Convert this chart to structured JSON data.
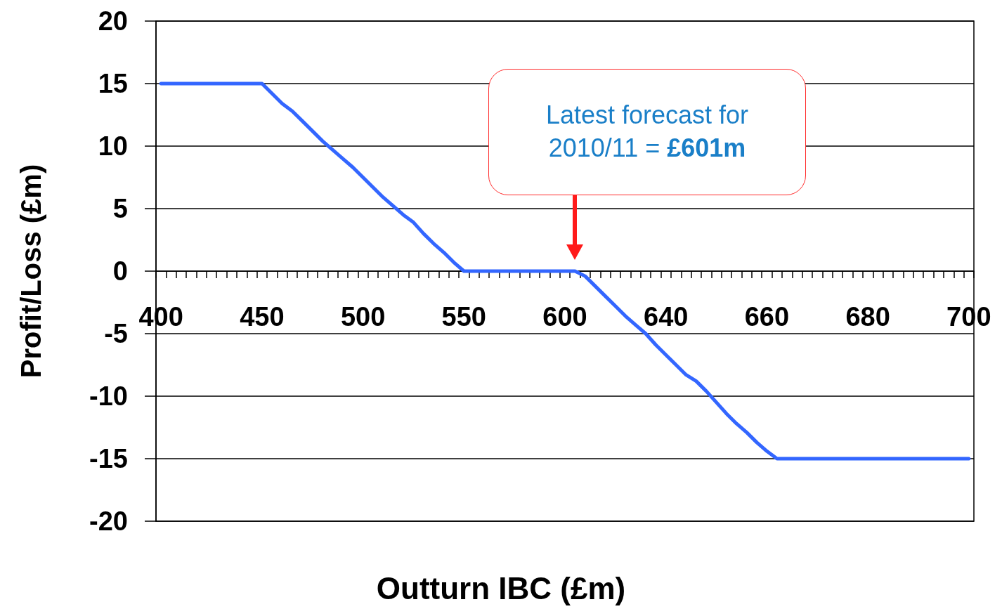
{
  "chart_data": {
    "type": "line",
    "xlabel": "Outturn IBC (£m)",
    "ylabel": "Profit/Loss (£m)",
    "categories": [
      "400",
      null,
      null,
      null,
      null,
      null,
      null,
      null,
      null,
      null,
      "450",
      null,
      null,
      null,
      null,
      null,
      null,
      null,
      null,
      null,
      "500",
      null,
      null,
      null,
      null,
      null,
      null,
      null,
      null,
      null,
      "550",
      null,
      null,
      null,
      null,
      null,
      null,
      null,
      null,
      null,
      "600",
      null,
      null,
      null,
      null,
      null,
      null,
      null,
      null,
      null,
      "640",
      null,
      null,
      null,
      null,
      null,
      null,
      null,
      null,
      null,
      "660",
      null,
      null,
      null,
      null,
      null,
      null,
      null,
      null,
      null,
      "680",
      null,
      null,
      null,
      null,
      null,
      null,
      null,
      null,
      null,
      "700"
    ],
    "series": [
      {
        "color": "#3366ff",
        "values": [
          15,
          15,
          15,
          15,
          15,
          15,
          15,
          15,
          15,
          15,
          15,
          14.2,
          13.4,
          12.8,
          12.0,
          11.2,
          10.4,
          9.7,
          9.0,
          8.3,
          7.5,
          6.7,
          5.9,
          5.2,
          4.5,
          3.9,
          3.0,
          2.2,
          1.5,
          0.7,
          0,
          0,
          0,
          0,
          0,
          0,
          0,
          0,
          0,
          0,
          0,
          0,
          -0.4,
          -1.2,
          -2.0,
          -2.8,
          -3.6,
          -4.3,
          -5.0,
          -5.9,
          -6.7,
          -7.5,
          -8.3,
          -8.8,
          -9.6,
          -10.5,
          -11.4,
          -12.2,
          -12.9,
          -13.7,
          -14.4,
          -15,
          -15,
          -15,
          -15,
          -15,
          -15,
          -15,
          -15,
          -15,
          -15,
          -15,
          -15,
          -15,
          -15,
          -15,
          -15,
          -15,
          -15,
          -15,
          -15
        ]
      }
    ],
    "ylim": [
      -20,
      20
    ],
    "yticks": [
      -20,
      -15,
      -10,
      -5,
      0,
      5,
      10,
      15,
      20
    ],
    "grid": "y",
    "marker": "none",
    "line_style": "solid",
    "annotations": [
      "Latest forecast for 2010/11 = £601m"
    ]
  }
}
